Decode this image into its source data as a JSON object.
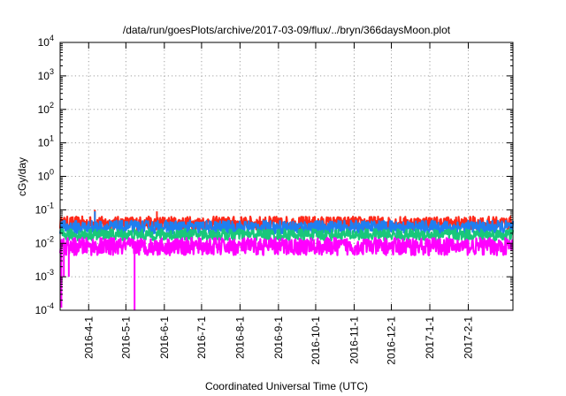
{
  "chart_data": {
    "type": "line",
    "title": "/data/run/goesPlots/archive/2017-03-09/flux/../bryn/366daysMoon.plot",
    "xlabel": "Coordinated Universal Time (UTC)",
    "ylabel": "cGy/day",
    "yscale": "log",
    "ylim": [
      0.0001,
      10000
    ],
    "yticks": [
      {
        "base": "10",
        "exp": "-4"
      },
      {
        "base": "10",
        "exp": "-3"
      },
      {
        "base": "10",
        "exp": "-2"
      },
      {
        "base": "10",
        "exp": "-1"
      },
      {
        "base": "10",
        "exp": "0"
      },
      {
        "base": "10",
        "exp": "1"
      },
      {
        "base": "10",
        "exp": "2"
      },
      {
        "base": "10",
        "exp": "3"
      },
      {
        "base": "10",
        "exp": "4"
      }
    ],
    "xlim": [
      "2016-03-09",
      "2017-03-09"
    ],
    "xticks": [
      "2016-4-1",
      "2016-5-1",
      "2016-6-1",
      "2016-7-1",
      "2016-8-1",
      "2016-9-1",
      "2016-10-1",
      "2016-11-1",
      "2016-12-1",
      "2017-1-1",
      "2017-2-1"
    ],
    "xtick_dates": [
      "2016-04-01",
      "2016-05-01",
      "2016-06-01",
      "2016-07-01",
      "2016-08-01",
      "2016-09-01",
      "2016-10-01",
      "2016-11-01",
      "2016-12-01",
      "2017-01-01",
      "2017-02-01"
    ],
    "grid": true,
    "legend": "none",
    "series": [
      {
        "color": "#ff2a1a",
        "baseline": 0.04,
        "spikes": [
          {
            "date": "2016-04-06",
            "value": 0.1
          },
          {
            "date": "2016-05-26",
            "value": 0.09
          }
        ]
      },
      {
        "color": "#1f7ff0",
        "baseline": 0.03,
        "spikes": [
          {
            "date": "2016-04-06",
            "value": 0.09
          }
        ]
      },
      {
        "color": "#19c77a",
        "baseline": 0.018,
        "spikes": []
      },
      {
        "color": "#ff00ff",
        "baseline": 0.008,
        "min_approx": 0.003,
        "dips": [
          {
            "date": "2016-03-10",
            "value": 0.00012
          },
          {
            "date": "2016-03-12",
            "value": 0.001
          },
          {
            "date": "2016-03-16",
            "value": 0.001
          },
          {
            "date": "2016-05-08",
            "value": 0.0001
          }
        ]
      }
    ]
  }
}
